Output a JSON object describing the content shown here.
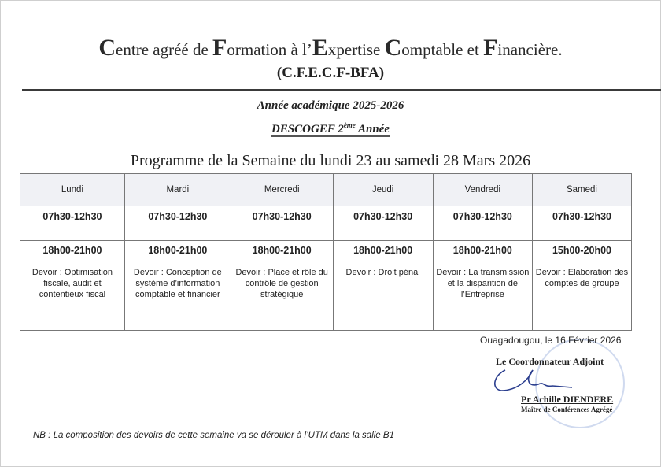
{
  "header": {
    "title_segments": [
      {
        "cap": "C",
        "rest": "entre agréé de "
      },
      {
        "cap": "F",
        "rest": "ormation à l’"
      },
      {
        "cap": "E",
        "rest": "xpertise "
      },
      {
        "cap": "C",
        "rest": "omptable et "
      },
      {
        "cap": "F",
        "rest": "inancière."
      }
    ],
    "acronym": "(C.F.E.C.F-BFA)",
    "academic_year": "Année académique 2025-2026",
    "level_prefix": "DESCOGEF 2",
    "level_sup": "ème",
    "level_suffix": " Année",
    "programme_title": "Programme de la Semaine du lundi 23 au samedi 28 Mars 2026"
  },
  "schedule": {
    "devoir_label": "Devoir :",
    "days": [
      {
        "day": "Lundi",
        "morning": "07h30-12h30",
        "evening": "18h00-21h00",
        "devoir": "Optimisation fiscale, audit et contentieux fiscal"
      },
      {
        "day": "Mardi",
        "morning": "07h30-12h30",
        "evening": "18h00-21h00",
        "devoir": "Conception de système d’information comptable et financier"
      },
      {
        "day": "Mercredi",
        "morning": "07h30-12h30",
        "evening": "18h00-21h00",
        "devoir": "Place et rôle du contrôle de gestion stratégique"
      },
      {
        "day": "Jeudi",
        "morning": "07h30-12h30",
        "evening": "18h00-21h00",
        "devoir": "Droit pénal"
      },
      {
        "day": "Vendredi",
        "morning": "07h30-12h30",
        "evening": "18h00-21h00",
        "devoir": "La transmission et la disparition de l’Entreprise"
      },
      {
        "day": "Samedi",
        "morning": "07h30-12h30",
        "evening": "15h00-20h00",
        "devoir": "Elaboration des comptes de groupe"
      }
    ]
  },
  "signature": {
    "place_date": "Ouagadougou, le 16 Février 2026",
    "role": "Le Coordonnateur Adjoint",
    "name": "Pr Achille DIENDERE",
    "rank": "Maître de Conférences Agrégé"
  },
  "note": {
    "key": "NB",
    "text": " : La composition des devoirs de cette semaine va se dérouler à l’UTM dans la salle B1"
  }
}
